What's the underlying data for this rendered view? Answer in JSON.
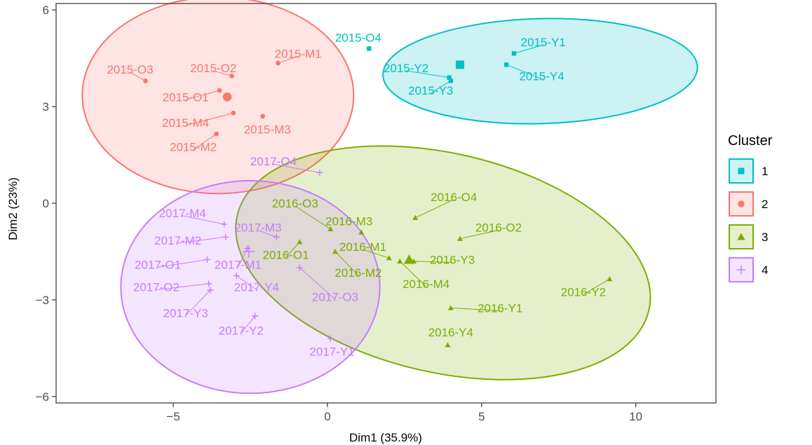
{
  "chart_data": {
    "type": "scatter",
    "xlabel": "Dim1 (35.9%)",
    "ylabel": "Dim2 (23%)",
    "xlim": [
      -8.8,
      12.6
    ],
    "ylim": [
      -6.2,
      6.2
    ],
    "x_ticks": [
      -5,
      0,
      5,
      10
    ],
    "y_ticks": [
      -6,
      -3,
      0,
      3,
      6
    ],
    "x_tick_labels": [
      "−5",
      "0",
      "5",
      "10"
    ],
    "y_tick_labels": [
      "−6",
      "−3",
      "0",
      "3",
      "6"
    ],
    "grid": false,
    "legend": {
      "title": "Cluster",
      "placement": "right",
      "entries": [
        {
          "label": "1",
          "shape": "square",
          "color": "#00bfc4"
        },
        {
          "label": "2",
          "shape": "circle",
          "color": "#f8766d"
        },
        {
          "label": "3",
          "shape": "triangle",
          "color": "#7cae00"
        },
        {
          "label": "4",
          "shape": "plus",
          "color": "#c77cff"
        }
      ]
    },
    "clusters": [
      {
        "id": "1",
        "shape": "square",
        "color": "#00bfc4",
        "center": [
          4.3,
          4.3
        ],
        "ellipse": {
          "cx": 6.9,
          "cy": 4.1,
          "rx": 5.1,
          "ry": 1.63,
          "angle": 1.5
        },
        "points": [
          {
            "label": "2015-O4",
            "x": 1.35,
            "y": 4.8,
            "lx": 1.0,
            "ly": 5.15
          },
          {
            "label": "2015-Y1",
            "x": 6.05,
            "y": 4.65,
            "lx": 7.0,
            "ly": 5.0
          },
          {
            "label": "2015-Y2",
            "x": 3.95,
            "y": 3.9,
            "lx": 2.55,
            "ly": 4.2
          },
          {
            "label": "2015-Y3",
            "x": 4.0,
            "y": 3.8,
            "lx": 3.35,
            "ly": 3.5
          },
          {
            "label": "2015-Y4",
            "x": 5.8,
            "y": 4.3,
            "lx": 6.95,
            "ly": 3.95
          }
        ]
      },
      {
        "id": "2",
        "shape": "circle",
        "color": "#f8766d",
        "center": [
          -3.25,
          3.3
        ],
        "ellipse": {
          "cx": -3.55,
          "cy": 3.35,
          "rx": 4.4,
          "ry": 3.05,
          "angle": 0
        },
        "points": [
          {
            "label": "2015-M1",
            "x": -1.6,
            "y": 4.35,
            "lx": -0.95,
            "ly": 4.65
          },
          {
            "label": "2015-O3",
            "x": -5.9,
            "y": 3.8,
            "lx": -6.4,
            "ly": 4.15
          },
          {
            "label": "2015-O2",
            "x": -3.1,
            "y": 3.95,
            "lx": -3.7,
            "ly": 4.2
          },
          {
            "label": "2015-O1",
            "x": -3.5,
            "y": 3.5,
            "lx": -4.6,
            "ly": 3.3
          },
          {
            "label": "2015-M4",
            "x": -3.05,
            "y": 2.8,
            "lx": -4.6,
            "ly": 2.5
          },
          {
            "label": "2015-M3",
            "x": -2.1,
            "y": 2.7,
            "lx": -1.95,
            "ly": 2.3
          },
          {
            "label": "2015-M2",
            "x": -3.6,
            "y": 2.15,
            "lx": -4.35,
            "ly": 1.75
          }
        ]
      },
      {
        "id": "3",
        "shape": "triangle",
        "color": "#7cae00",
        "center": [
          2.65,
          -1.75
        ],
        "ellipse": {
          "cx": 3.75,
          "cy": -1.85,
          "rx": 6.85,
          "ry": 3.4,
          "angle": -13
        },
        "points": [
          {
            "label": "2016-O4",
            "x": 2.85,
            "y": -0.45,
            "lx": 4.1,
            "ly": 0.2
          },
          {
            "label": "2016-O3",
            "x": 0.1,
            "y": -0.8,
            "lx": -1.05,
            "ly": 0.0
          },
          {
            "label": "2016-M3",
            "x": 1.1,
            "y": -0.9,
            "lx": 0.7,
            "ly": -0.55
          },
          {
            "label": "2016-O2",
            "x": 4.3,
            "y": -1.1,
            "lx": 5.55,
            "ly": -0.75
          },
          {
            "label": "2016-O1",
            "x": -0.9,
            "y": -1.2,
            "lx": -1.35,
            "ly": -1.6
          },
          {
            "label": "2016-M1",
            "x": 2.0,
            "y": -1.7,
            "lx": 1.15,
            "ly": -1.35
          },
          {
            "label": "2016-M2",
            "x": 0.25,
            "y": -1.5,
            "lx": 1.0,
            "ly": -2.15
          },
          {
            "label": "2016-Y3",
            "x": 2.8,
            "y": -1.8,
            "lx": 4.05,
            "ly": -1.75
          },
          {
            "label": "2016-M4",
            "x": 2.35,
            "y": -1.8,
            "lx": 3.2,
            "ly": -2.5
          },
          {
            "label": "2016-Y1",
            "x": 4.0,
            "y": -3.25,
            "lx": 5.6,
            "ly": -3.25
          },
          {
            "label": "2016-Y2",
            "x": 9.15,
            "y": -2.35,
            "lx": 8.3,
            "ly": -2.75
          },
          {
            "label": "2016-Y4",
            "x": 3.9,
            "y": -4.4,
            "lx": 4.0,
            "ly": -4.0
          }
        ]
      },
      {
        "id": "4",
        "shape": "plus",
        "color": "#c77cff",
        "center": [
          -2.55,
          -1.5
        ],
        "ellipse": {
          "cx": -2.5,
          "cy": -2.6,
          "rx": 4.2,
          "ry": 3.3,
          "angle": 0
        },
        "points": [
          {
            "label": "2017-O4",
            "x": -0.25,
            "y": 0.95,
            "lx": -1.75,
            "ly": 1.3
          },
          {
            "label": "2017-M4",
            "x": -3.35,
            "y": -0.65,
            "lx": -4.7,
            "ly": -0.3
          },
          {
            "label": "2017-M3",
            "x": -1.65,
            "y": -1.05,
            "lx": -2.25,
            "ly": -0.75
          },
          {
            "label": "2017-M2",
            "x": -3.3,
            "y": -1.05,
            "lx": -4.85,
            "ly": -1.15
          },
          {
            "label": "2017-M1",
            "x": -2.6,
            "y": -1.4,
            "lx": -2.9,
            "ly": -1.9
          },
          {
            "label": "2017-O1",
            "x": -3.9,
            "y": -1.75,
            "lx": -5.5,
            "ly": -1.9
          },
          {
            "label": "2017-O2",
            "x": -3.85,
            "y": -2.5,
            "lx": -5.55,
            "ly": -2.6
          },
          {
            "label": "2017-Y3",
            "x": -3.8,
            "y": -2.7,
            "lx": -4.6,
            "ly": -3.4
          },
          {
            "label": "2017-Y4",
            "x": -2.95,
            "y": -2.25,
            "lx": -2.3,
            "ly": -2.6
          },
          {
            "label": "2017-O3",
            "x": -0.9,
            "y": -2.0,
            "lx": 0.25,
            "ly": -2.9
          },
          {
            "label": "2017-Y2",
            "x": -2.35,
            "y": -3.5,
            "lx": -2.8,
            "ly": -3.95
          },
          {
            "label": "2017-Y1",
            "x": 0.1,
            "y": -4.2,
            "lx": 0.15,
            "ly": -4.6
          }
        ]
      }
    ]
  }
}
